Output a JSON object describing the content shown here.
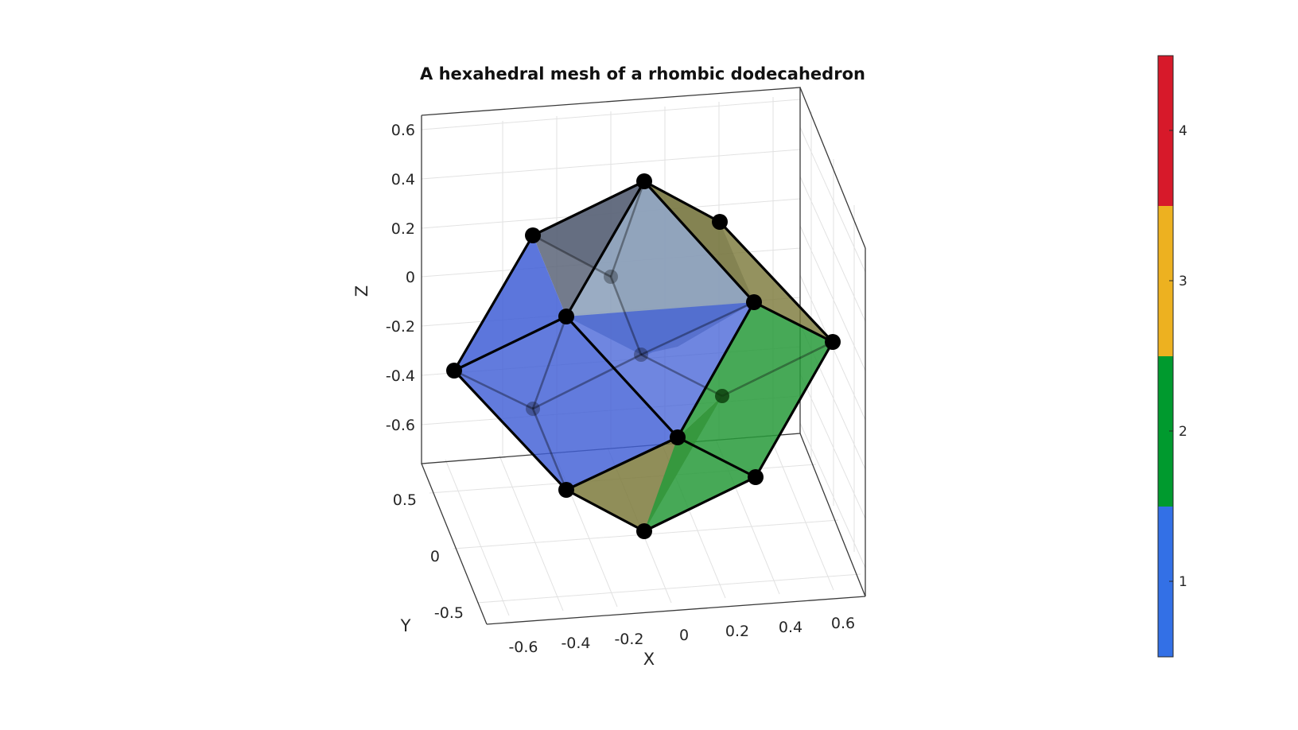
{
  "title": "A hexahedral mesh of a rhombic dodecahedron",
  "axes": {
    "x": {
      "label": "X",
      "ticks": [
        "-0.6",
        "-0.4",
        "-0.2",
        "0",
        "0.2",
        "0.4",
        "0.6"
      ]
    },
    "y": {
      "label": "Y",
      "ticks": [
        "-0.5",
        "0",
        "0.5"
      ]
    },
    "z": {
      "label": "Z",
      "ticks": [
        "0.6",
        "0.4",
        "0.2",
        "0",
        "-0.2",
        "-0.4",
        "-0.6"
      ]
    }
  },
  "colorbar": {
    "ticks": [
      "4",
      "3",
      "2",
      "1"
    ],
    "colors": [
      "#d7192a",
      "#edb120",
      "#009a2e",
      "#3370e6"
    ]
  },
  "face_colors": {
    "1": "#3f5ed6",
    "2": "#279a3a",
    "3": "#7d7a3c",
    "top": "#8fa3bc",
    "back": "#5a6478"
  }
}
